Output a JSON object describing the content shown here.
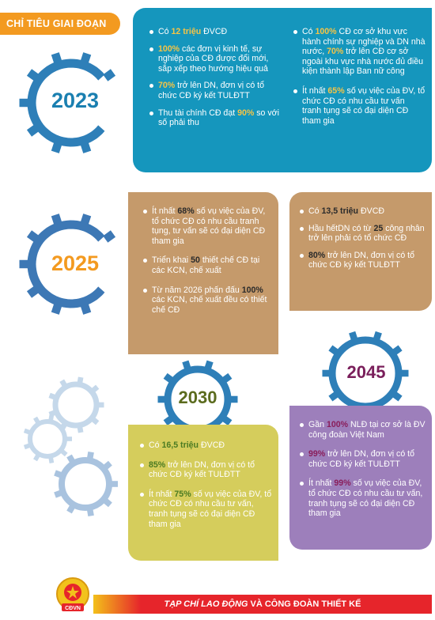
{
  "header": {
    "title": "CHỈ TIÊU GIAI ĐOẠN"
  },
  "years": {
    "y2023": "2023",
    "y2025": "2025",
    "y2030": "2030",
    "y2045": "2045"
  },
  "colors": {
    "blue": "#1596bd",
    "orange": "#f39a20",
    "tan": "#c59a6b",
    "olive": "#d5cd5c",
    "purple": "#9d7fbb",
    "red": "#e6252b"
  },
  "p2023": {
    "col1": [
      {
        "pre": "Có ",
        "hl": "12 triệu",
        "post": " ĐVCĐ"
      },
      {
        "pre": "",
        "hl": "100%",
        "post": " các đơn vị kinh tế, sự nghiệp của CĐ được đổi mới, sắp xếp theo hướng hiệu quả"
      },
      {
        "pre": "",
        "hl": "70%",
        "post": " trở lên DN, đơn vị có tổ chức CĐ ký kết TULĐTT"
      },
      {
        "pre": "Thu tài chính CĐ đạt ",
        "hl": "90%",
        "post": " so với số phải thu"
      }
    ],
    "col2": [
      {
        "pre": "Có ",
        "hl": "100%",
        "post": " CĐ cơ sở khu vực hành chính sự nghiệp và DN nhà nước, "
      },
      {
        "pre": "",
        "hl": "70%",
        "post": " trở lên CĐ cơ sở ngoài khu vực nhà nước đủ điều kiện thành lập Ban nữ công"
      },
      {
        "pre": "Ít nhất ",
        "hl": "65%",
        "post": " số vụ việc của ĐV, tổ chức CĐ có nhu cầu tư vấn tranh tụng sẽ có đại diện CĐ tham gia"
      }
    ]
  },
  "p2025a": [
    {
      "pre": "Ít nhất ",
      "hl": "68%",
      "post": " số vụ việc của ĐV, tổ chức CĐ có nhu cầu tranh tụng, tư vấn sẽ có đại diện CĐ tham gia"
    },
    {
      "pre": "Triển khai ",
      "hl": "50",
      "post": " thiết chế CĐ tại các KCN, chế xuất"
    },
    {
      "pre": "Từ năm 2026 phấn đấu ",
      "hl": "100%",
      "post": " các KCN, chế xuất đều có thiết chế CĐ"
    }
  ],
  "p2025b": [
    {
      "pre": "Có ",
      "hl": "13,5 triệu",
      "post": " ĐVCĐ"
    },
    {
      "pre": "Hầu hếtDN có từ ",
      "hl": "25",
      "post": " công nhân trở lên phải có tổ chức CĐ"
    },
    {
      "pre": "",
      "hl": "80%",
      "post": " trở lên DN, đơn vị có tổ chức CĐ ký kết TULĐTT"
    }
  ],
  "p2030": [
    {
      "pre": "Có ",
      "hl": "16,5 triệu",
      "post": " ĐVCĐ"
    },
    {
      "pre": "",
      "hl": "85%",
      "post": " trở lên DN, đơn vị có tổ chức CĐ ký kết TULĐTT"
    },
    {
      "pre": "Ít nhất ",
      "hl": "75%",
      "post": " số vụ việc của ĐV, tổ chức CĐ có nhu cầu tư vấn, tranh tụng sẽ có đại diện CĐ tham gia"
    }
  ],
  "p2045": [
    {
      "pre": "Gần ",
      "hl": "100%",
      "post": " NLĐ tại cơ sở là ĐV công đoàn Việt Nam"
    },
    {
      "pre": "",
      "hl": "99%",
      "post": " trở lên DN, đơn vị có tổ chức CĐ ký kết TULĐTT"
    },
    {
      "pre": "Ít nhất ",
      "hl": "99%",
      "post": " số vụ việc của ĐV, tổ chức CĐ có nhu cầu tư vấn, tranh tụng sẽ có đại diện CĐ tham gia"
    }
  ],
  "footer": {
    "text_a": "TẠP CHÍ LAO ĐỘNG",
    "text_b": " VÀ CÔNG ĐOÀN THIẾT KẾ"
  },
  "logo": {
    "label": "CĐVN"
  }
}
